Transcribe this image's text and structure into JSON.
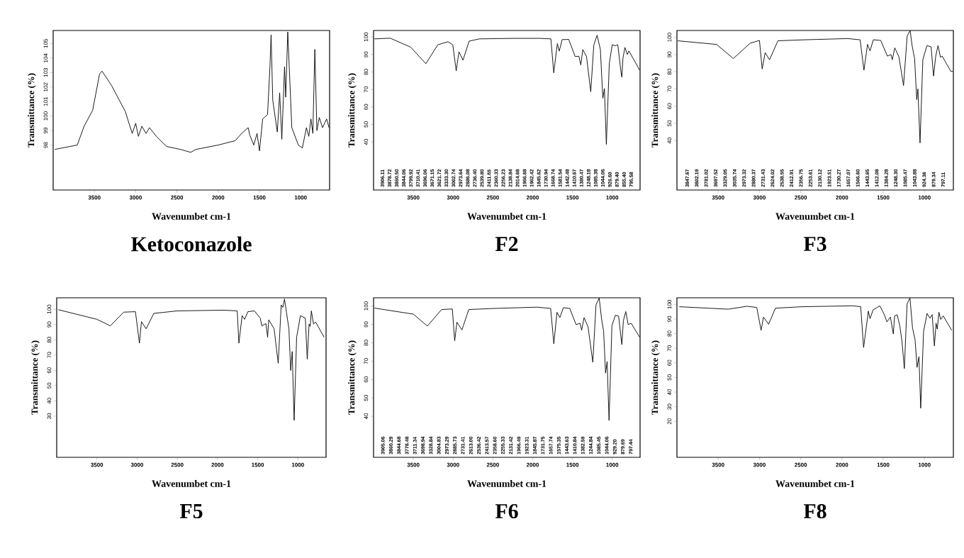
{
  "chart_data": [
    {
      "type": "line",
      "title": "Ketoconazole",
      "xlabel": "Wavenumbet cm-1",
      "ylabel": "Transmittance (%)",
      "xlim": [
        4000,
        650
      ],
      "xticks": [
        3500,
        3000,
        2500,
        2000,
        1500,
        1000
      ],
      "ylim": [
        94.9,
        105.9
      ],
      "yticks": [
        98,
        99,
        100,
        101,
        102,
        103,
        104,
        105
      ],
      "series": [
        {
          "color": "#000000",
          "x": [
            3980,
            3708,
            3625,
            3521,
            3438,
            3408,
            3292,
            3125,
            3042,
            3000,
            2967,
            2925,
            2875,
            2833,
            2750,
            2625,
            2458,
            2333,
            2271,
            2000,
            1794,
            1716,
            1637,
            1618,
            1569,
            1529,
            1500,
            1461,
            1402,
            1373,
            1359,
            1339,
            1284,
            1255,
            1229,
            1196,
            1182,
            1157,
            1108,
            1029,
            980,
            931,
            902,
            876,
            853,
            829,
            804,
            775,
            735,
            686,
            657
          ],
          "values": [
            97.7,
            98.0,
            99.3,
            100.4,
            102.9,
            103.1,
            102.1,
            100.3,
            98.8,
            99.5,
            98.6,
            99.3,
            98.8,
            99.2,
            98.6,
            97.9,
            97.7,
            97.5,
            97.7,
            98.0,
            98.3,
            98.8,
            99.2,
            98.7,
            98.0,
            98.8,
            97.6,
            99.8,
            100.1,
            103.4,
            105.6,
            101.1,
            98.9,
            101.6,
            98.4,
            103.4,
            101.3,
            105.8,
            99.2,
            98.0,
            97.8,
            99.2,
            98.6,
            99.8,
            98.8,
            104.6,
            99.0,
            99.9,
            99.2,
            99.8,
            99.2
          ]
        }
      ]
    },
    {
      "type": "line",
      "title": "F2",
      "xlabel": "Wavenumbet cm-1",
      "ylabel": "Transmittance (%)",
      "xlim": [
        4000,
        650
      ],
      "xticks": [
        3500,
        3000,
        2500,
        2000,
        1500,
        1000
      ],
      "ylim": [
        12.5,
        103.7
      ],
      "yticks": [
        40,
        50,
        60,
        70,
        80,
        90,
        100
      ],
      "series": [
        {
          "color": "#000000",
          "x": [
            3990,
            3790,
            3534,
            3342,
            3193,
            3065,
            3004,
            2961,
            2927,
            2876,
            2799,
            2671,
            2244,
            1914,
            1771,
            1735,
            1690,
            1666,
            1629,
            1547,
            1466,
            1419,
            1395,
            1370,
            1323,
            1270,
            1231,
            1190,
            1149,
            1118,
            1098,
            1074,
            1037,
            1000,
            960,
            930,
            890,
            879,
            865,
            840,
            810,
            790,
            655
          ],
          "values": [
            98.9,
            99.3,
            94.2,
            84.7,
            95.5,
            97.3,
            95.5,
            80.6,
            91.5,
            86.7,
            97.6,
            98.9,
            99.2,
            99.2,
            98.9,
            79.5,
            96.2,
            91.9,
            98.5,
            98.6,
            88.8,
            89.0,
            84.0,
            92.8,
            88.8,
            68.7,
            95.5,
            101.0,
            92.8,
            65.0,
            70.5,
            38.6,
            84.7,
            95.5,
            95.0,
            95.5,
            80.0,
            77.0,
            88.0,
            94.0,
            90.0,
            92.0,
            81.0
          ]
        }
      ],
      "annotations": [
        "3906.11",
        "3878.72",
        "3860.50",
        "3844.06",
        "3799.92",
        "3710.41",
        "3696.06",
        "3671.15",
        "3621.72",
        "3333.30",
        "3002.74",
        "2973.64",
        "2886.08",
        "2736.40",
        "2539.80",
        "2411.65",
        "2360.33",
        "2256.23",
        "2138.84",
        "2014.68",
        "1966.68",
        "1902.42",
        "1845.62",
        "1730.94",
        "1668.74",
        "1581.54",
        "1442.48",
        "1410.67",
        "1380.47",
        "1248.18",
        "1085.38",
        "1044.06",
        "926.60",
        "879.40",
        "855.40",
        "795.58"
      ]
    },
    {
      "type": "line",
      "title": "F3",
      "xlabel": "Wavenumbet cm-1",
      "ylabel": "Transmittance (%)",
      "xlim": [
        4000,
        650
      ],
      "xticks": [
        3500,
        3000,
        2500,
        2000,
        1500,
        1000
      ],
      "ylim": [
        11.2,
        104
      ],
      "yticks": [
        40,
        50,
        60,
        70,
        80,
        90,
        100
      ],
      "series": [
        {
          "color": "#000000",
          "x": [
            3990,
            3520,
            3317,
            3113,
            3000,
            2967,
            2931,
            2878,
            2776,
            2451,
            1930,
            1780,
            1734,
            1690,
            1660,
            1620,
            1530,
            1450,
            1406,
            1390,
            1360,
            1310,
            1254,
            1210,
            1174,
            1150,
            1120,
            1094,
            1080,
            1054,
            1020,
            970,
            920,
            890,
            864,
            836,
            806,
            786,
            680,
            655
          ],
          "values": [
            98.0,
            95.9,
            87.7,
            96.6,
            98.2,
            81.6,
            91.1,
            87.0,
            98.0,
            98.6,
            99.3,
            98.6,
            80.9,
            95.9,
            92.1,
            98.6,
            98.2,
            89.1,
            90.0,
            87.0,
            93.9,
            88.7,
            72.0,
            100.7,
            104.0,
            95.2,
            87.7,
            63.8,
            70.0,
            38.6,
            87.0,
            95.2,
            94.5,
            77.5,
            89.1,
            95.2,
            88.4,
            89.1,
            80.2,
            80.2
          ]
        }
      ],
      "annotations": [
        "3847.67",
        "3802.19",
        "3781.02",
        "3697.52",
        "3329.05",
        "3035.74",
        "2973.32",
        "2880.37",
        "2731.43",
        "2624.02",
        "2538.55",
        "2412.91",
        "2356.75",
        "2253.61",
        "2130.12",
        "1923.51",
        "1730.27",
        "1657.07",
        "1566.60",
        "1443.65",
        "1412.08",
        "1384.28",
        "1248.30",
        "1085.47",
        "1043.88",
        "924.36",
        "879.34",
        "797.11"
      ]
    },
    {
      "type": "line",
      "title": "F5",
      "xlabel": "Wavenumbet cm-1",
      "ylabel": "Transmittance (%)",
      "xlim": [
        4000,
        650
      ],
      "xticks": [
        3500,
        3000,
        2500,
        2000,
        1500,
        1000
      ],
      "ylim": [
        3,
        107.5
      ],
      "yticks": [
        30,
        40,
        50,
        60,
        70,
        80,
        90,
        100
      ],
      "series": [
        {
          "color": "#000000",
          "x": [
            3980,
            3500,
            3333,
            3167,
            3021,
            2971,
            2946,
            2888,
            2792,
            2500,
            1918,
            1755,
            1734,
            1694,
            1663,
            1622,
            1541,
            1469,
            1449,
            1398,
            1377,
            1363,
            1296,
            1275,
            1245,
            1208,
            1187,
            1167,
            1143,
            1112,
            1090,
            1071,
            1047,
            1016,
            969,
            908,
            884,
            861,
            847,
            833,
            806,
            780,
            674
          ],
          "values": [
            99.7,
            93.4,
            89.1,
            98.1,
            98.4,
            77.8,
            91.9,
            87.2,
            97.3,
            98.9,
            99.4,
            98.9,
            77.8,
            95.8,
            93.4,
            98.4,
            98.9,
            94.2,
            89.1,
            90.6,
            81.7,
            93.1,
            87.2,
            77.8,
            64.6,
            102.8,
            101.2,
            106.7,
            98.1,
            87.2,
            59.9,
            72.3,
            27.2,
            81.7,
            95.8,
            94.2,
            67.3,
            90.3,
            88.8,
            98.9,
            90.3,
            91.6,
            81.7
          ]
        }
      ]
    },
    {
      "type": "line",
      "title": "F6",
      "xlabel": "Wavenumbet cm-1",
      "ylabel": "Transmittance (%)",
      "xlim": [
        4000,
        650
      ],
      "xticks": [
        3500,
        3000,
        2500,
        2000,
        1500,
        1000
      ],
      "ylim": [
        17.6,
        104.5
      ],
      "yticks": [
        40,
        50,
        60,
        70,
        80,
        90,
        100
      ],
      "series": [
        {
          "color": "#000000",
          "x": [
            3990,
            3500,
            3323,
            3145,
            3010,
            2980,
            2952,
            2889,
            2803,
            2488,
            1944,
            1774,
            1734,
            1694,
            1658,
            1614,
            1534,
            1454,
            1404,
            1384,
            1354,
            1304,
            1244,
            1204,
            1164,
            1134,
            1108,
            1084,
            1064,
            1040,
            1004,
            960,
            920,
            879,
            860,
            830,
            800,
            760,
            655
          ],
          "values": [
            98.9,
            95.6,
            89.1,
            98.1,
            98.4,
            81.1,
            91.2,
            87.0,
            98.1,
            98.7,
            99.4,
            98.7,
            79.5,
            96.6,
            93.7,
            99.1,
            98.7,
            89.9,
            90.6,
            86.8,
            93.7,
            88.7,
            69.4,
            100.6,
            104.4,
            93.1,
            86.2,
            63.5,
            69.8,
            37.7,
            89.3,
            95.0,
            94.5,
            79.0,
            92.0,
            97.0,
            90.0,
            90.5,
            83.0
          ]
        }
      ],
      "annotations": [
        "3905.06",
        "3860.29",
        "3844.68",
        "3778.48",
        "3711.34",
        "3698.94",
        "3328.84",
        "3004.83",
        "2973.29",
        "2885.73",
        "2731.41",
        "2613.00",
        "2536.42",
        "2413.57",
        "2358.60",
        "2255.33",
        "2131.42",
        "1966.49",
        "1923.31",
        "1845.87",
        "1731.75",
        "1657.74",
        "1575.35",
        "1443.63",
        "1410.84",
        "1382.59",
        "1244.84",
        "1085.45",
        "1044.06",
        "929.20",
        "879.69",
        "797.44"
      ]
    },
    {
      "type": "line",
      "title": "F8",
      "xlabel": "Wavenumbet cm-1",
      "ylabel": "Transmittance (%)",
      "xlim": [
        4000,
        650
      ],
      "xticks": [
        3500,
        3000,
        2500,
        2000,
        1500,
        1000
      ],
      "ylim": [
        -4.6,
        104.5
      ],
      "yticks": [
        20,
        30,
        40,
        50,
        60,
        70,
        80,
        90,
        100
      ],
      "series": [
        {
          "color": "#000000",
          "x": [
            3972,
            3623,
            3377,
            3152,
            3033,
            2980,
            2951,
            2889,
            2807,
            2479,
            1866,
            1773,
            1738,
            1680,
            1660,
            1623,
            1541,
            1486,
            1455,
            1413,
            1378,
            1362,
            1331,
            1300,
            1273,
            1244,
            1211,
            1197,
            1176,
            1145,
            1114,
            1090,
            1067,
            1046,
            1011,
            969,
            934,
            907,
            880,
            860,
            845,
            825,
            804,
            773,
            670
          ],
          "values": [
            98.4,
            97.4,
            96.7,
            98.7,
            97.9,
            82.3,
            91.3,
            86.4,
            97.4,
            98.4,
            99.0,
            98.4,
            70.5,
            95.4,
            90.2,
            96.2,
            99.0,
            92.9,
            88.0,
            91.3,
            79.8,
            92.1,
            92.9,
            85.6,
            74.9,
            56.1,
            100.3,
            102.0,
            104.4,
            83.9,
            75.7,
            56.9,
            64.3,
            29.0,
            81.5,
            93.8,
            90.5,
            93.0,
            71.6,
            87.2,
            83.1,
            94.6,
            89.7,
            92.1,
            82.3
          ]
        }
      ]
    }
  ]
}
